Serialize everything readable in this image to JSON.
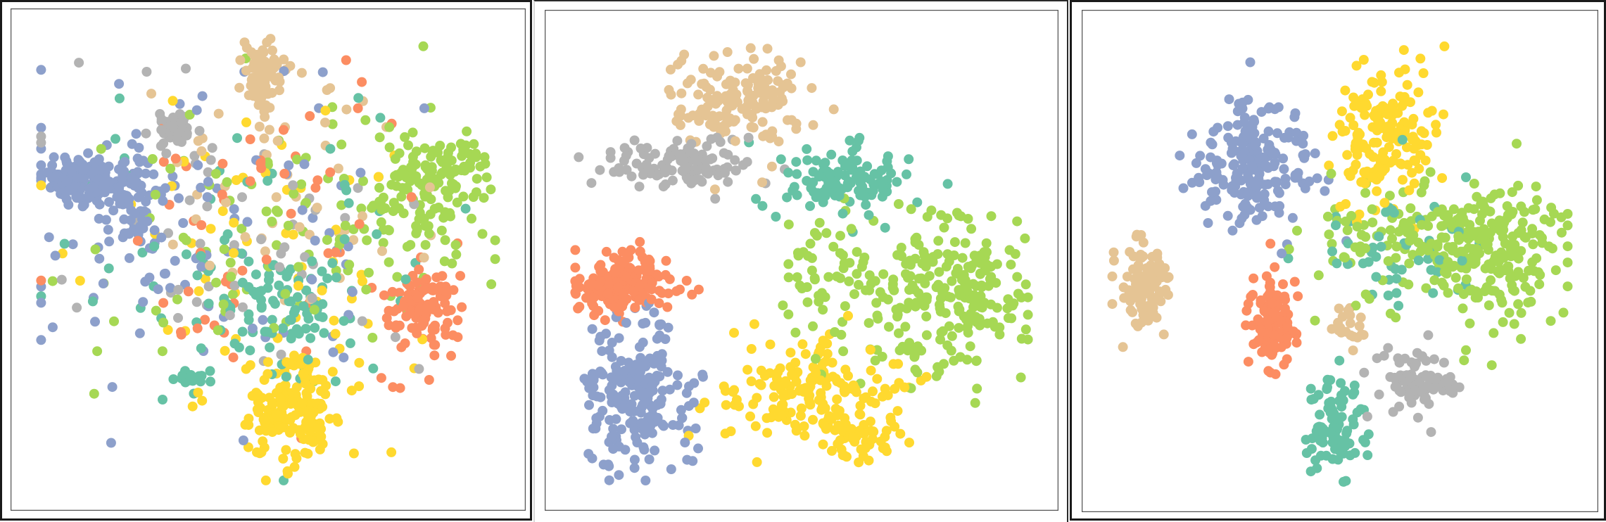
{
  "chart_data": [
    {
      "type": "scatter",
      "xlim": [
        0,
        100
      ],
      "ylim": [
        0,
        100
      ],
      "grid": false,
      "legend": "none",
      "axes": "hidden",
      "series": [
        {
          "color": "#8da0cb",
          "clusters": [
            {
              "cx": 10,
              "cy": 67,
              "sx": 4,
              "sy": 2.5,
              "n": 140
            },
            {
              "cx": 21,
              "cy": 62,
              "sx": 3,
              "sy": 6,
              "n": 80
            },
            {
              "cx": 35,
              "cy": 52,
              "sx": 22,
              "sy": 18,
              "n": 90
            }
          ]
        },
        {
          "color": "#fc8d62",
          "clusters": [
            {
              "cx": 83,
              "cy": 39,
              "sx": 3.5,
              "sy": 4.5,
              "n": 110
            },
            {
              "cx": 50,
              "cy": 55,
              "sx": 20,
              "sy": 18,
              "n": 60
            }
          ]
        },
        {
          "color": "#66c2a5",
          "clusters": [
            {
              "cx": 51,
              "cy": 40,
              "sx": 8,
              "sy": 6,
              "n": 70
            },
            {
              "cx": 34,
              "cy": 24,
              "sx": 2,
              "sy": 1,
              "n": 14
            },
            {
              "cx": 48,
              "cy": 50,
              "sx": 20,
              "sy": 18,
              "n": 70
            }
          ]
        },
        {
          "color": "#a6d854",
          "clusters": [
            {
              "cx": 86,
              "cy": 70,
              "sx": 5,
              "sy": 4,
              "n": 100
            },
            {
              "cx": 78,
              "cy": 59,
              "sx": 7,
              "sy": 7,
              "n": 70
            },
            {
              "cx": 55,
              "cy": 55,
              "sx": 20,
              "sy": 16,
              "n": 90
            }
          ]
        },
        {
          "color": "#ffd92f",
          "clusters": [
            {
              "cx": 56,
              "cy": 17,
              "sx": 5,
              "sy": 6,
              "n": 160
            },
            {
              "cx": 48,
              "cy": 45,
              "sx": 18,
              "sy": 18,
              "n": 70
            }
          ]
        },
        {
          "color": "#e5c494",
          "clusters": [
            {
              "cx": 49,
              "cy": 90,
              "sx": 2.5,
              "sy": 4.5,
              "n": 90
            },
            {
              "cx": 50,
              "cy": 68,
              "sx": 14,
              "sy": 12,
              "n": 50
            }
          ]
        },
        {
          "color": "#b3b3b3",
          "clusters": [
            {
              "cx": 30,
              "cy": 78,
              "sx": 2.2,
              "sy": 2,
              "n": 40
            },
            {
              "cx": 42,
              "cy": 55,
              "sx": 18,
              "sy": 16,
              "n": 50
            }
          ]
        }
      ]
    },
    {
      "type": "scatter",
      "xlim": [
        0,
        100
      ],
      "ylim": [
        0,
        100
      ],
      "grid": false,
      "legend": "none",
      "axes": "hidden",
      "series": [
        {
          "color": "#e5c494",
          "clusters": [
            {
              "cx": 36,
              "cy": 85,
              "sx": 7,
              "sy": 5,
              "n": 160
            }
          ]
        },
        {
          "color": "#b3b3b3",
          "clusters": [
            {
              "cx": 25,
              "cy": 71,
              "sx": 8,
              "sy": 2.5,
              "n": 110
            }
          ]
        },
        {
          "color": "#66c2a5",
          "clusters": [
            {
              "cx": 59,
              "cy": 68,
              "sx": 7,
              "sy": 4,
              "n": 120
            }
          ]
        },
        {
          "color": "#fc8d62",
          "clusters": [
            {
              "cx": 12,
              "cy": 45,
              "sx": 5,
              "sy": 3.5,
              "n": 170
            }
          ]
        },
        {
          "color": "#8da0cb",
          "clusters": [
            {
              "cx": 15,
              "cy": 20,
              "sx": 6,
              "sy": 8,
              "n": 200
            }
          ]
        },
        {
          "color": "#a6d854",
          "clusters": [
            {
              "cx": 80,
              "cy": 43,
              "sx": 9,
              "sy": 9,
              "n": 230
            },
            {
              "cx": 55,
              "cy": 48,
              "sx": 6,
              "sy": 8,
              "n": 60
            }
          ]
        },
        {
          "color": "#ffd92f",
          "clusters": [
            {
              "cx": 53,
              "cy": 21,
              "sx": 9,
              "sy": 6,
              "n": 180
            },
            {
              "cx": 63,
              "cy": 11,
              "sx": 3,
              "sy": 2.5,
              "n": 40
            }
          ]
        }
      ]
    },
    {
      "type": "scatter",
      "xlim": [
        0,
        100
      ],
      "ylim": [
        0,
        100
      ],
      "grid": false,
      "legend": "none",
      "axes": "hidden",
      "series": [
        {
          "color": "#ffd92f",
          "clusters": [
            {
              "cx": 60,
              "cy": 78,
              "sx": 5,
              "sy": 8,
              "n": 170
            }
          ]
        },
        {
          "color": "#8da0cb",
          "clusters": [
            {
              "cx": 32,
              "cy": 71,
              "sx": 6,
              "sy": 7,
              "n": 200
            }
          ]
        },
        {
          "color": "#e5c494",
          "clusters": [
            {
              "cx": 9,
              "cy": 44,
              "sx": 3,
              "sy": 4.5,
              "n": 110
            },
            {
              "cx": 52,
              "cy": 37,
              "sx": 2,
              "sy": 2.5,
              "n": 20
            }
          ]
        },
        {
          "color": "#fc8d62",
          "clusters": [
            {
              "cx": 36,
              "cy": 37,
              "sx": 2.5,
              "sy": 5,
              "n": 110
            }
          ]
        },
        {
          "color": "#a6d854",
          "clusters": [
            {
              "cx": 82,
              "cy": 52,
              "sx": 8,
              "sy": 7,
              "n": 240
            },
            {
              "cx": 60,
              "cy": 55,
              "sx": 9,
              "sy": 7,
              "n": 80
            }
          ]
        },
        {
          "color": "#66c2a5",
          "clusters": [
            {
              "cx": 49,
              "cy": 13,
              "sx": 3,
              "sy": 6,
              "n": 90
            },
            {
              "cx": 62,
              "cy": 52,
              "sx": 9,
              "sy": 8,
              "n": 50
            }
          ]
        },
        {
          "color": "#b3b3b3",
          "clusters": [
            {
              "cx": 66,
              "cy": 24,
              "sx": 4,
              "sy": 4,
              "n": 80
            }
          ]
        }
      ]
    }
  ]
}
